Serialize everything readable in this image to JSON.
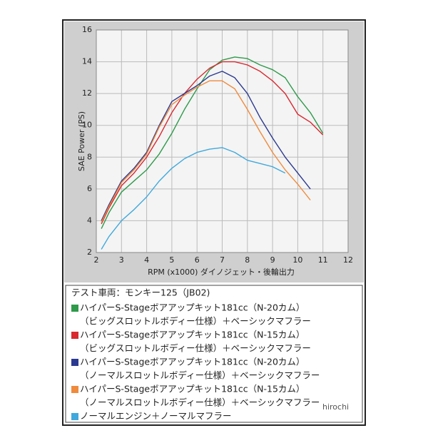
{
  "chart_data": {
    "type": "line",
    "x_label": "RPM (x1000) ダイノジェット・後輪出力",
    "y_label": "SAE Power (PS)",
    "xlim": [
      2,
      12
    ],
    "xticks": [
      2,
      3,
      4,
      5,
      6,
      7,
      8,
      9,
      10,
      11,
      12
    ],
    "ylim": [
      2,
      16
    ],
    "yticks": [
      2,
      4,
      6,
      8,
      10,
      12,
      14,
      16
    ],
    "grid": true,
    "x": [
      2.2,
      2.5,
      3,
      3.5,
      4,
      4.5,
      5,
      5.5,
      6,
      6.5,
      7,
      7.5,
      8,
      8.5,
      9,
      9.5,
      10,
      10.5,
      11
    ],
    "legend_title": "テスト車両：モンキー125（JB02)",
    "series": [
      {
        "name": "ハイパーS-Stageボアアップキット181cc（N-20カム）",
        "subname": "（ビッグスロットルボディー仕様）＋ベーシックマフラー",
        "color": "#2e9a4a",
        "values": [
          3.5,
          4.5,
          5.8,
          6.5,
          7.2,
          8.2,
          9.5,
          11,
          12.3,
          13.5,
          14.1,
          14.3,
          14.2,
          13.8,
          13.5,
          13,
          11.8,
          10.8,
          9.5
        ]
      },
      {
        "name": "ハイパーS-Stageボアアップキット181cc（N-15カム）",
        "subname": "（ビッグスロットルボディー仕様）＋ベーシックマフラー",
        "color": "#d9282f",
        "values": [
          3.8,
          4.8,
          6.2,
          7,
          8,
          9.3,
          10.8,
          12,
          12.9,
          13.6,
          14,
          14,
          13.8,
          13.4,
          12.8,
          12,
          10.7,
          10.2,
          9.4
        ]
      },
      {
        "name": "ハイパーS-Stageボアアップキット181cc（N-20カム）",
        "subname": "（ノーマルスロットルボディー仕様）＋ベーシックマフラー",
        "color": "#2b3990",
        "values": [
          4,
          5,
          6.5,
          7.3,
          8.3,
          10,
          11.5,
          12,
          12.5,
          13.1,
          13.4,
          13,
          12,
          10.5,
          9.2,
          8,
          7,
          6,
          null
        ]
      },
      {
        "name": "ハイパーS-Stageボアアップキット181cc（N-15カム）",
        "subname": "（ノーマルスロットルボディー仕様）＋ベーシックマフラー",
        "color": "#f08a3c",
        "values": [
          3.9,
          4.9,
          6.4,
          7.2,
          8.2,
          9.9,
          11.3,
          11.9,
          12.4,
          12.8,
          12.8,
          12.3,
          11,
          9.6,
          8.3,
          7.2,
          6.3,
          5.3,
          null
        ]
      },
      {
        "name": "ノーマルエンジン＋ノーマルマフラー",
        "color": "#3fa9dc",
        "values": [
          2.2,
          3,
          4,
          4.7,
          5.5,
          6.5,
          7.3,
          7.9,
          8.3,
          8.5,
          8.6,
          8.3,
          7.8,
          7.6,
          7.4,
          7,
          null,
          null,
          null
        ]
      }
    ],
    "watermark": "hirochi"
  }
}
